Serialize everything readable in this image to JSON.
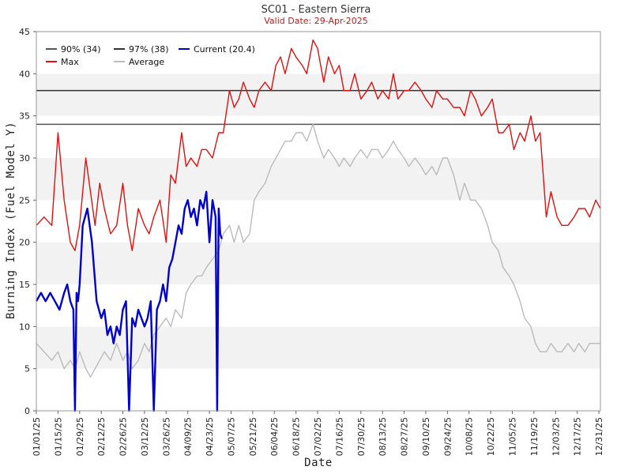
{
  "chart_data": {
    "type": "line",
    "title": "SC01 - Eastern Sierra",
    "subtitle": "Valid Date: 29-Apr-2025",
    "xlabel": "Date",
    "ylabel": "Burning Index (Fuel Model Y)",
    "ylim": [
      0,
      45
    ],
    "yticks": [
      0,
      5,
      10,
      15,
      20,
      25,
      30,
      35,
      40,
      45
    ],
    "x_domain_days": [
      0,
      365
    ],
    "xticks": [
      {
        "day": 0,
        "label": "01/01/25"
      },
      {
        "day": 14,
        "label": "01/15/25"
      },
      {
        "day": 28,
        "label": "01/29/25"
      },
      {
        "day": 42,
        "label": "02/12/25"
      },
      {
        "day": 56,
        "label": "02/26/25"
      },
      {
        "day": 70,
        "label": "03/12/25"
      },
      {
        "day": 84,
        "label": "03/26/25"
      },
      {
        "day": 98,
        "label": "04/09/25"
      },
      {
        "day": 112,
        "label": "04/23/25"
      },
      {
        "day": 126,
        "label": "05/07/25"
      },
      {
        "day": 140,
        "label": "05/21/25"
      },
      {
        "day": 154,
        "label": "06/04/25"
      },
      {
        "day": 168,
        "label": "06/18/25"
      },
      {
        "day": 182,
        "label": "07/02/25"
      },
      {
        "day": 196,
        "label": "07/16/25"
      },
      {
        "day": 210,
        "label": "07/30/25"
      },
      {
        "day": 224,
        "label": "08/13/25"
      },
      {
        "day": 238,
        "label": "08/27/25"
      },
      {
        "day": 252,
        "label": "09/10/25"
      },
      {
        "day": 266,
        "label": "09/24/25"
      },
      {
        "day": 280,
        "label": "10/08/25"
      },
      {
        "day": 294,
        "label": "10/22/25"
      },
      {
        "day": 308,
        "label": "11/05/25"
      },
      {
        "day": 322,
        "label": "11/19/25"
      },
      {
        "day": 336,
        "label": "12/03/25"
      },
      {
        "day": 350,
        "label": "12/17/25"
      },
      {
        "day": 364,
        "label": "12/31/25"
      }
    ],
    "grid": "alternating horizontal bands every 5 units",
    "legend": {
      "placement": "top-left",
      "entries": [
        {
          "label": "90% (34)",
          "color": "#555555"
        },
        {
          "label": "97% (38)",
          "color": "#333333"
        },
        {
          "label": "Current (20.4)",
          "color": "#0000cc"
        },
        {
          "label": "Max",
          "color": "#dd1111"
        },
        {
          "label": "Average",
          "color": "#bbbbbb"
        }
      ]
    },
    "thresholds": [
      {
        "name": "90% (34)",
        "value": 34,
        "color": "#555555"
      },
      {
        "name": "97% (38)",
        "value": 38,
        "color": "#333333"
      }
    ],
    "series": [
      {
        "name": "Max",
        "color": "#dd1111",
        "x": [
          0,
          5,
          10,
          14,
          18,
          22,
          25,
          28,
          32,
          35,
          38,
          41,
          44,
          48,
          52,
          56,
          59,
          62,
          66,
          70,
          73,
          76,
          80,
          84,
          87,
          90,
          94,
          97,
          100,
          104,
          107,
          110,
          114,
          118,
          121,
          125,
          128,
          131,
          134,
          138,
          141,
          144,
          148,
          152,
          155,
          158,
          161,
          165,
          168,
          172,
          175,
          179,
          182,
          186,
          189,
          193,
          196,
          199,
          203,
          206,
          210,
          214,
          217,
          221,
          224,
          228,
          231,
          234,
          238,
          241,
          245,
          249,
          252,
          256,
          259,
          263,
          266,
          270,
          274,
          277,
          281,
          284,
          288,
          292,
          295,
          299,
          302,
          306,
          309,
          313,
          316,
          320,
          323,
          326,
          330,
          333,
          337,
          340,
          344,
          348,
          351,
          355,
          358,
          362,
          365
        ],
        "y": [
          22,
          23,
          22,
          33,
          25,
          20,
          19,
          22,
          30,
          26,
          22,
          27,
          24,
          21,
          22,
          27,
          22,
          19,
          24,
          22,
          21,
          23,
          25,
          20,
          28,
          27,
          33,
          29,
          30,
          29,
          31,
          31,
          30,
          33,
          33,
          38,
          36,
          37,
          39,
          37,
          36,
          38,
          39,
          38,
          41,
          42,
          40,
          43,
          42,
          41,
          40,
          44,
          43,
          39,
          42,
          40,
          41,
          38,
          38,
          40,
          37,
          38,
          39,
          37,
          38,
          37,
          40,
          37,
          38,
          38,
          39,
          38,
          37,
          36,
          38,
          37,
          37,
          36,
          36,
          35,
          38,
          37,
          35,
          36,
          37,
          33,
          33,
          34,
          31,
          33,
          32,
          35,
          32,
          33,
          23,
          26,
          23,
          22,
          22,
          23,
          24,
          24,
          23,
          25,
          24
        ]
      },
      {
        "name": "Average",
        "color": "#bbbbbb",
        "x": [
          0,
          5,
          10,
          14,
          18,
          22,
          25,
          28,
          32,
          35,
          38,
          41,
          44,
          48,
          52,
          56,
          59,
          62,
          66,
          70,
          73,
          76,
          80,
          84,
          87,
          90,
          94,
          97,
          100,
          104,
          107,
          110,
          114,
          118,
          121,
          125,
          128,
          131,
          134,
          138,
          141,
          144,
          148,
          152,
          155,
          158,
          161,
          165,
          168,
          172,
          175,
          179,
          182,
          186,
          189,
          193,
          196,
          199,
          203,
          206,
          210,
          214,
          217,
          221,
          224,
          228,
          231,
          234,
          238,
          241,
          245,
          249,
          252,
          256,
          259,
          263,
          266,
          270,
          274,
          277,
          281,
          284,
          288,
          292,
          295,
          299,
          302,
          306,
          309,
          313,
          316,
          320,
          323,
          326,
          330,
          333,
          337,
          340,
          344,
          348,
          351,
          355,
          358,
          362,
          365
        ],
        "y": [
          8,
          7,
          6,
          7,
          5,
          6,
          5,
          7,
          5,
          4,
          5,
          6,
          7,
          6,
          8,
          6,
          7,
          5,
          6,
          8,
          7,
          9,
          10,
          11,
          10,
          12,
          11,
          14,
          15,
          16,
          16,
          17,
          18,
          19,
          21,
          22,
          20,
          22,
          20,
          21,
          25,
          26,
          27,
          29,
          30,
          31,
          32,
          32,
          33,
          33,
          32,
          34,
          32,
          30,
          31,
          30,
          29,
          30,
          29,
          30,
          31,
          30,
          31,
          31,
          30,
          31,
          32,
          31,
          30,
          29,
          30,
          29,
          28,
          29,
          28,
          30,
          30,
          28,
          25,
          27,
          25,
          25,
          24,
          22,
          20,
          19,
          17,
          16,
          15,
          13,
          11,
          10,
          8,
          7,
          7,
          8,
          7,
          7,
          8,
          7,
          8,
          7,
          8,
          8,
          8
        ]
      },
      {
        "name": "Current (20.4)",
        "color": "#0000cc",
        "x": [
          0,
          3,
          6,
          9,
          12,
          15,
          18,
          20,
          22,
          24,
          25,
          26,
          27,
          28,
          30,
          33,
          36,
          39,
          42,
          44,
          46,
          48,
          50,
          52,
          54,
          56,
          58,
          60,
          62,
          64,
          66,
          68,
          70,
          72,
          74,
          76,
          78,
          80,
          82,
          84,
          86,
          88,
          90,
          92,
          94,
          96,
          98,
          100,
          102,
          104,
          106,
          108,
          110,
          112,
          114,
          116,
          117,
          118,
          119,
          120
        ],
        "y": [
          13,
          14,
          13,
          14,
          13,
          12,
          14,
          15,
          13,
          12,
          0,
          14,
          13,
          15,
          22,
          24,
          20,
          13,
          11,
          12,
          9,
          10,
          8,
          10,
          9,
          12,
          13,
          0,
          11,
          10,
          12,
          11,
          10,
          11,
          13,
          0,
          12,
          13,
          15,
          13,
          17,
          18,
          20,
          22,
          21,
          24,
          25,
          23,
          24,
          22,
          25,
          24,
          26,
          20,
          25,
          23,
          0,
          24,
          21,
          20.4
        ]
      }
    ]
  }
}
